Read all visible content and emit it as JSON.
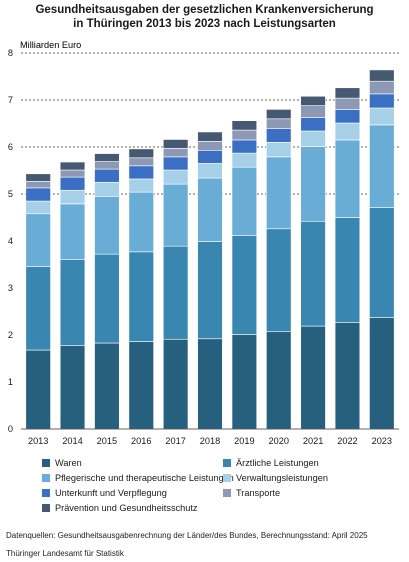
{
  "title_line1": "Gesundheitsausgaben der gesetzlichen Krankenversicherung",
  "title_line2": "in Thüringen 2013 bis 2023 nach Leistungsarten",
  "source": "Datenquellen: Gesundheitsausgabenrechnung der Länder/des Bundes, Berechnungsstand: April 2025",
  "publisher": "Thüringer Landesamt für Statistik",
  "chart_data": {
    "type": "bar",
    "stacked": true,
    "ylabel": "Milliarden Euro",
    "ylim": [
      0,
      8
    ],
    "yticks": [
      0,
      1,
      2,
      3,
      4,
      5,
      6,
      7,
      8
    ],
    "grid": "dashed horizontal at 5, 6, 7, 8",
    "legend_position": "bottom",
    "categories": [
      "2013",
      "2014",
      "2015",
      "2016",
      "2017",
      "2018",
      "2019",
      "2020",
      "2021",
      "2022",
      "2023"
    ],
    "series": [
      {
        "name": "Waren",
        "color": "#27607e",
        "values": [
          1.68,
          1.78,
          1.83,
          1.86,
          1.91,
          1.92,
          2.01,
          2.07,
          2.19,
          2.27,
          2.37
        ]
      },
      {
        "name": "Ärztliche Leistungen",
        "color": "#3986b0",
        "values": [
          1.78,
          1.83,
          1.89,
          1.91,
          1.98,
          2.07,
          2.11,
          2.19,
          2.23,
          2.23,
          2.34
        ]
      },
      {
        "name": "Pflegerische und therapeutische Leistungen",
        "color": "#69acd5",
        "values": [
          1.12,
          1.18,
          1.23,
          1.27,
          1.32,
          1.35,
          1.45,
          1.53,
          1.59,
          1.65,
          1.76
        ]
      },
      {
        "name": "Verwaltungsleistungen",
        "color": "#a6d0e8",
        "values": [
          0.27,
          0.29,
          0.3,
          0.28,
          0.3,
          0.31,
          0.3,
          0.31,
          0.33,
          0.36,
          0.36
        ]
      },
      {
        "name": "Unterkunft und Verpflegung",
        "color": "#3a6fc4",
        "values": [
          0.28,
          0.28,
          0.28,
          0.28,
          0.28,
          0.28,
          0.28,
          0.29,
          0.29,
          0.29,
          0.3
        ]
      },
      {
        "name": "Transporte",
        "color": "#8d98b4",
        "values": [
          0.14,
          0.15,
          0.16,
          0.17,
          0.18,
          0.19,
          0.21,
          0.21,
          0.25,
          0.24,
          0.27
        ]
      },
      {
        "name": "Prävention und Gesundheitsschutz",
        "color": "#465872",
        "values": [
          0.16,
          0.17,
          0.17,
          0.19,
          0.19,
          0.2,
          0.2,
          0.2,
          0.2,
          0.22,
          0.24
        ]
      }
    ]
  }
}
